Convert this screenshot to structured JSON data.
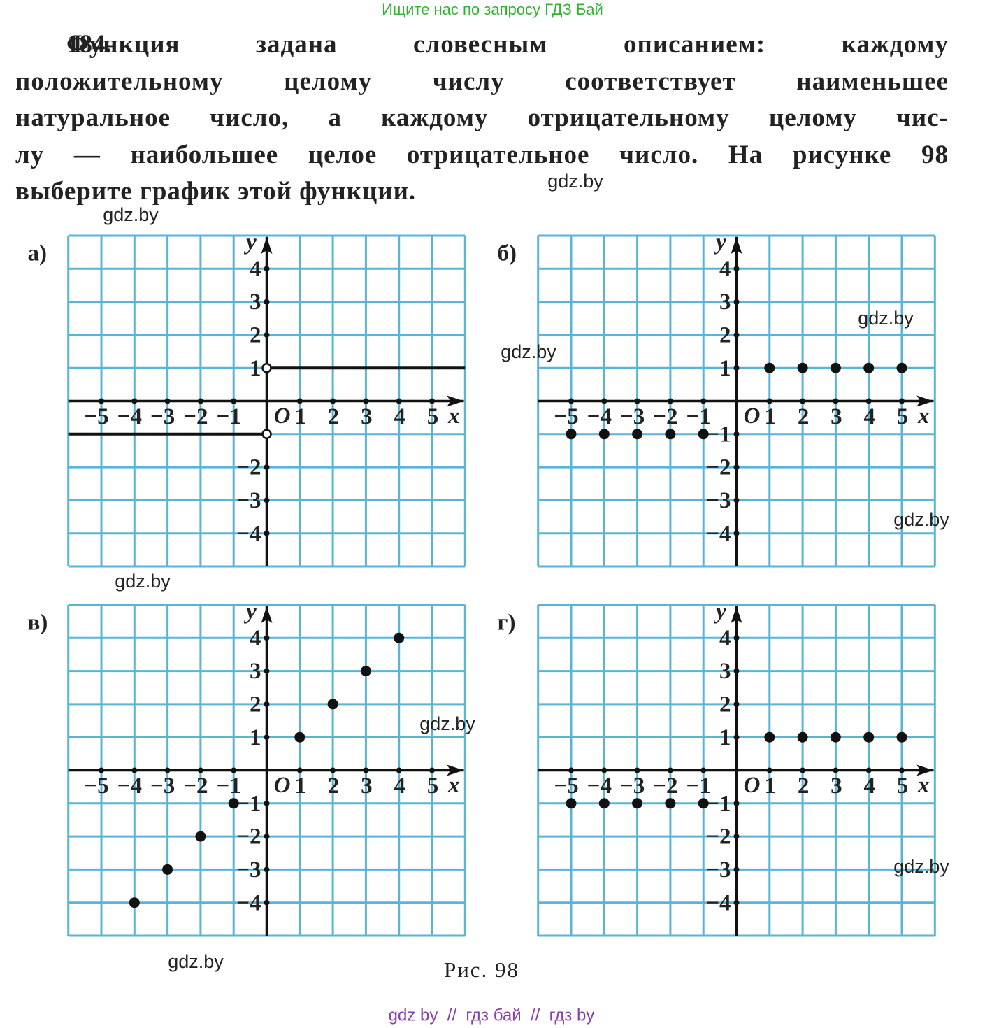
{
  "header": {
    "banner": "Ищите нас по запросу ГДЗ Бай"
  },
  "problem": {
    "number": "184.",
    "lines": [
      "Функция задана словесным описанием: каждому",
      "положительному целому числу соответствует наименьшее",
      "натуральное число, а каждому отрицательному целому чис-",
      "лу — наибольшее целое отрицательное число. На рисунке 98",
      "выберите график этой функции."
    ]
  },
  "grid": {
    "xlim": [
      -6,
      6
    ],
    "ylim": [
      -5,
      5
    ]
  },
  "panels": [
    {
      "label": "а)",
      "origin": "O",
      "x_axis": "x",
      "y_axis": "y",
      "xticks": [
        {
          "value": -5,
          "label": "−5"
        },
        {
          "value": -4,
          "label": "−4"
        },
        {
          "value": -3,
          "label": "−3"
        },
        {
          "value": -2,
          "label": "−2"
        },
        {
          "value": -1,
          "label": "−1"
        },
        1,
        2,
        3,
        4,
        5
      ],
      "yticks": [
        4,
        3,
        2,
        1,
        {
          "value": -2,
          "label": "−2"
        },
        {
          "value": -3,
          "label": "−3"
        },
        {
          "value": -4,
          "label": "−4"
        }
      ],
      "lines": [
        {
          "y": 1,
          "x": [
            0,
            6
          ],
          "open": [
            true,
            false
          ]
        },
        {
          "y": -1,
          "x": [
            -6,
            0
          ],
          "open": [
            false,
            true
          ]
        }
      ],
      "points": []
    },
    {
      "label": "б)",
      "origin": "O",
      "x_axis": "x",
      "y_axis": "y",
      "xticks": [
        {
          "value": -5,
          "label": "−5"
        },
        {
          "value": -4,
          "label": "−4"
        },
        {
          "value": -3,
          "label": "−3"
        },
        {
          "value": -2,
          "label": "−2"
        },
        {
          "value": -1,
          "label": "−1"
        },
        1,
        2,
        3,
        4,
        5
      ],
      "yticks": [
        4,
        3,
        2,
        1,
        {
          "value": -1,
          "label": "−1"
        },
        {
          "value": -2,
          "label": "−2"
        },
        {
          "value": -3,
          "label": "−3"
        },
        {
          "value": -4,
          "label": "−4"
        }
      ],
      "lines": [],
      "points": [
        [
          -5,
          -1
        ],
        [
          -4,
          -1
        ],
        [
          -3,
          -1
        ],
        [
          -2,
          -1
        ],
        [
          -1,
          -1
        ],
        [
          1,
          1
        ],
        [
          2,
          1
        ],
        [
          3,
          1
        ],
        [
          4,
          1
        ],
        [
          5,
          1
        ]
      ]
    },
    {
      "label": "в)",
      "origin": "O",
      "x_axis": "x",
      "y_axis": "y",
      "xticks": [
        {
          "value": -5,
          "label": "−5"
        },
        {
          "value": -4,
          "label": "−4"
        },
        {
          "value": -3,
          "label": "−3"
        },
        {
          "value": -2,
          "label": "−2"
        },
        {
          "value": -1,
          "label": "−1"
        },
        1,
        2,
        3,
        4,
        5
      ],
      "yticks": [
        4,
        3,
        2,
        1,
        {
          "value": -1,
          "label": "−1"
        },
        {
          "value": -2,
          "label": "−2"
        },
        {
          "value": -3,
          "label": "−3"
        },
        {
          "value": -4,
          "label": "−4"
        }
      ],
      "lines": [],
      "points": [
        [
          -4,
          -4
        ],
        [
          -3,
          -3
        ],
        [
          -2,
          -2
        ],
        [
          -1,
          -1
        ],
        [
          1,
          1
        ],
        [
          2,
          2
        ],
        [
          3,
          3
        ],
        [
          4,
          4
        ]
      ]
    },
    {
      "label": "г)",
      "origin": "O",
      "x_axis": "x",
      "y_axis": "y",
      "xticks": [
        {
          "value": -5,
          "label": "−5"
        },
        {
          "value": -4,
          "label": "−4"
        },
        {
          "value": -3,
          "label": "−3"
        },
        {
          "value": -2,
          "label": "−2"
        },
        {
          "value": -1,
          "label": "−1"
        },
        1,
        2,
        3,
        4,
        5
      ],
      "yticks": [
        4,
        3,
        2,
        1,
        {
          "value": -1,
          "label": "−1"
        },
        {
          "value": -2,
          "label": "−2"
        },
        {
          "value": -3,
          "label": "−3"
        },
        {
          "value": -4,
          "label": "−4"
        }
      ],
      "lines": [],
      "points": [
        [
          -5,
          -1
        ],
        [
          -4,
          -1
        ],
        [
          -3,
          -1
        ],
        [
          -2,
          -1
        ],
        [
          -1,
          -1
        ],
        [
          1,
          1
        ],
        [
          2,
          1
        ],
        [
          3,
          1
        ],
        [
          4,
          1
        ],
        [
          5,
          1
        ]
      ]
    }
  ],
  "caption": "Рис. 98",
  "watermarks": [
    "gdz.by",
    "gdz.by",
    "gdz.by",
    "gdz.by",
    "gdz.by",
    "gdz.by",
    "gdz.by",
    "gdz.by",
    "gdz.by"
  ],
  "footer": "gdz by  //  гдз бай  //  гдз by"
}
